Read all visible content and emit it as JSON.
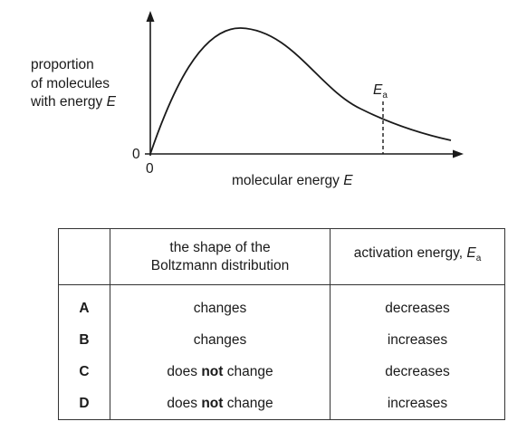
{
  "graph": {
    "y_label_lines": [
      "proportion",
      "of molecules",
      "with energy "
    ],
    "y_label_var": "E",
    "x_label": "molecular energy ",
    "x_label_var": "E",
    "y_zero": "0",
    "x_zero": "0",
    "marker_letter": "E",
    "marker_sub": "a"
  },
  "table": {
    "header_shape_line1": "the shape of the",
    "header_shape_line2": "Boltzmann distribution",
    "header_activation": "activation energy, ",
    "header_activation_var": "E",
    "header_activation_sub": "a",
    "rows": [
      {
        "letter": "A",
        "shape_pre": "changes",
        "shape_bold": "",
        "shape_post": "",
        "activation": "decreases"
      },
      {
        "letter": "B",
        "shape_pre": "changes",
        "shape_bold": "",
        "shape_post": "",
        "activation": "increases"
      },
      {
        "letter": "C",
        "shape_pre": "does ",
        "shape_bold": "not",
        "shape_post": " change",
        "activation": "decreases"
      },
      {
        "letter": "D",
        "shape_pre": "does ",
        "shape_bold": "not",
        "shape_post": " change",
        "activation": "increases"
      }
    ]
  }
}
